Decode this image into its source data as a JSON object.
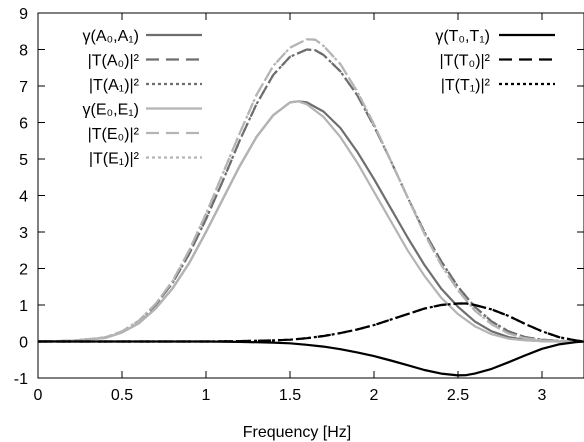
{
  "chart_data": {
    "type": "line",
    "title": "",
    "xlabel": "Frequency [Hz]",
    "ylabel": "",
    "xlim": [
      0,
      3.25
    ],
    "ylim": [
      -1,
      9
    ],
    "grid": false,
    "legend_placement": "top-left and top-right",
    "x_ticks": [
      "0",
      "0.5",
      "1",
      "1.5",
      "2",
      "2.5",
      "3"
    ],
    "x_tick_values": [
      0,
      0.5,
      1,
      1.5,
      2,
      2.5,
      3
    ],
    "y_ticks": [
      "-1",
      "0",
      "1",
      "2",
      "3",
      "4",
      "5",
      "6",
      "7",
      "8",
      "9"
    ],
    "y_tick_values": [
      -1,
      0,
      1,
      2,
      3,
      4,
      5,
      6,
      7,
      8,
      9
    ],
    "legend_left": [
      {
        "label": "γ(A₀,A₁)",
        "series": 0
      },
      {
        "label": "|T(A₀)|²",
        "series": 1
      },
      {
        "label": "|T(A₁)|²",
        "series": 2
      },
      {
        "label": "γ(E₀,E₁)",
        "series": 3
      },
      {
        "label": "|T(E₀)|²",
        "series": 4
      },
      {
        "label": "|T(E₁)|²",
        "series": 5
      }
    ],
    "legend_right": [
      {
        "label": "γ(T₀,T₁)",
        "series": 6
      },
      {
        "label": "|T(T₀)|²",
        "series": 7
      },
      {
        "label": "|T(T₁)|²",
        "series": 8
      }
    ],
    "series": [
      {
        "name": "γ(A₀,A₁)",
        "color": "#6e6e6e",
        "dash": "solid",
        "x": [
          0,
          0.2,
          0.4,
          0.5,
          0.6,
          0.7,
          0.8,
          0.9,
          1.0,
          1.1,
          1.2,
          1.3,
          1.4,
          1.5,
          1.55,
          1.6,
          1.7,
          1.8,
          1.9,
          2.0,
          2.1,
          2.2,
          2.3,
          2.4,
          2.5,
          2.6,
          2.7,
          2.8,
          2.9,
          3.0,
          3.1,
          3.2,
          3.25
        ],
        "y": [
          0,
          0.02,
          0.1,
          0.25,
          0.5,
          0.9,
          1.45,
          2.15,
          3.0,
          3.9,
          4.8,
          5.6,
          6.2,
          6.55,
          6.58,
          6.55,
          6.3,
          5.85,
          5.2,
          4.45,
          3.65,
          2.85,
          2.1,
          1.45,
          0.95,
          0.55,
          0.28,
          0.12,
          0.04,
          0.01,
          0,
          0,
          0
        ]
      },
      {
        "name": "|T(A₀)|²",
        "color": "#6e6e6e",
        "dash": "long",
        "x": [
          0,
          0.2,
          0.4,
          0.5,
          0.6,
          0.7,
          0.8,
          0.9,
          1.0,
          1.1,
          1.2,
          1.3,
          1.4,
          1.5,
          1.6,
          1.65,
          1.7,
          1.8,
          1.9,
          2.0,
          2.1,
          2.2,
          2.3,
          2.4,
          2.5,
          2.6,
          2.7,
          2.8,
          2.9,
          3.0,
          3.1,
          3.2,
          3.25
        ],
        "y": [
          0,
          0.02,
          0.11,
          0.27,
          0.55,
          1.0,
          1.6,
          2.4,
          3.35,
          4.4,
          5.5,
          6.5,
          7.3,
          7.8,
          8.0,
          7.98,
          7.85,
          7.4,
          6.75,
          5.9,
          4.95,
          3.95,
          3.0,
          2.2,
          1.5,
          0.95,
          0.55,
          0.28,
          0.12,
          0.05,
          0.02,
          0,
          0
        ]
      },
      {
        "name": "|T(A₁)|²",
        "color": "#6e6e6e",
        "dash": "dotted",
        "x": [
          0,
          0.2,
          0.4,
          0.5,
          0.6,
          0.7,
          0.8,
          0.9,
          1.0,
          1.1,
          1.2,
          1.3,
          1.4,
          1.5,
          1.6,
          1.65,
          1.7,
          1.8,
          1.9,
          2.0,
          2.1,
          2.2,
          2.3,
          2.4,
          2.5,
          2.6,
          2.7,
          2.8,
          2.9,
          3.0,
          3.1,
          3.2,
          3.25
        ],
        "y": [
          0,
          0.02,
          0.11,
          0.27,
          0.55,
          1.0,
          1.6,
          2.4,
          3.35,
          4.4,
          5.5,
          6.5,
          7.3,
          7.8,
          8.0,
          7.98,
          7.85,
          7.4,
          6.75,
          5.9,
          4.95,
          3.95,
          3.0,
          2.2,
          1.5,
          0.95,
          0.55,
          0.28,
          0.12,
          0.05,
          0.02,
          0,
          0
        ]
      },
      {
        "name": "γ(E₀,E₁)",
        "color": "#b4b4b4",
        "dash": "solid",
        "x": [
          0,
          0.2,
          0.4,
          0.5,
          0.6,
          0.7,
          0.8,
          0.9,
          1.0,
          1.1,
          1.2,
          1.3,
          1.4,
          1.5,
          1.55,
          1.6,
          1.7,
          1.8,
          1.9,
          2.0,
          2.1,
          2.2,
          2.3,
          2.4,
          2.5,
          2.6,
          2.7,
          2.8,
          2.9,
          3.0,
          3.1,
          3.2,
          3.25
        ],
        "y": [
          0,
          0.02,
          0.1,
          0.25,
          0.5,
          0.9,
          1.45,
          2.15,
          3.0,
          3.9,
          4.8,
          5.6,
          6.2,
          6.55,
          6.58,
          6.5,
          6.15,
          5.6,
          4.9,
          4.1,
          3.3,
          2.5,
          1.8,
          1.2,
          0.75,
          0.42,
          0.2,
          0.08,
          0.03,
          0.01,
          0,
          0,
          0
        ]
      },
      {
        "name": "|T(E₀)|²",
        "color": "#b4b4b4",
        "dash": "long",
        "x": [
          0,
          0.2,
          0.4,
          0.5,
          0.6,
          0.7,
          0.8,
          0.9,
          1.0,
          1.1,
          1.2,
          1.3,
          1.4,
          1.5,
          1.6,
          1.65,
          1.7,
          1.8,
          1.9,
          2.0,
          2.1,
          2.2,
          2.3,
          2.4,
          2.5,
          2.6,
          2.7,
          2.8,
          2.9,
          3.0,
          3.1,
          3.2,
          3.25
        ],
        "y": [
          0,
          0.02,
          0.11,
          0.28,
          0.57,
          1.03,
          1.65,
          2.5,
          3.5,
          4.6,
          5.7,
          6.75,
          7.55,
          8.05,
          8.28,
          8.27,
          8.1,
          7.6,
          6.85,
          5.95,
          4.95,
          3.95,
          2.95,
          2.1,
          1.4,
          0.85,
          0.47,
          0.22,
          0.09,
          0.03,
          0.01,
          0,
          0
        ]
      },
      {
        "name": "|T(E₁)|²",
        "color": "#b4b4b4",
        "dash": "dotted",
        "x": [
          0,
          0.2,
          0.4,
          0.5,
          0.6,
          0.7,
          0.8,
          0.9,
          1.0,
          1.1,
          1.2,
          1.3,
          1.4,
          1.5,
          1.6,
          1.65,
          1.7,
          1.8,
          1.9,
          2.0,
          2.1,
          2.2,
          2.3,
          2.4,
          2.5,
          2.6,
          2.7,
          2.8,
          2.9,
          3.0,
          3.1,
          3.2,
          3.25
        ],
        "y": [
          0,
          0.02,
          0.11,
          0.28,
          0.57,
          1.03,
          1.65,
          2.5,
          3.5,
          4.6,
          5.7,
          6.75,
          7.55,
          8.05,
          8.28,
          8.27,
          8.1,
          7.6,
          6.85,
          5.95,
          4.95,
          3.95,
          2.95,
          2.1,
          1.4,
          0.85,
          0.47,
          0.22,
          0.09,
          0.03,
          0.01,
          0,
          0
        ]
      },
      {
        "name": "γ(T₀,T₁)",
        "color": "#000000",
        "dash": "solid",
        "x": [
          0,
          0.5,
          1.0,
          1.2,
          1.4,
          1.5,
          1.6,
          1.7,
          1.8,
          1.9,
          2.0,
          2.1,
          2.2,
          2.3,
          2.4,
          2.5,
          2.55,
          2.6,
          2.7,
          2.8,
          2.9,
          3.0,
          3.1,
          3.2,
          3.25
        ],
        "y": [
          0,
          0,
          0,
          -0.01,
          -0.03,
          -0.05,
          -0.09,
          -0.14,
          -0.21,
          -0.3,
          -0.4,
          -0.52,
          -0.65,
          -0.78,
          -0.88,
          -0.93,
          -0.92,
          -0.88,
          -0.75,
          -0.57,
          -0.38,
          -0.2,
          -0.08,
          -0.02,
          0
        ]
      },
      {
        "name": "|T(T₀)|²",
        "color": "#000000",
        "dash": "long",
        "x": [
          0,
          0.5,
          1.0,
          1.2,
          1.4,
          1.5,
          1.6,
          1.7,
          1.8,
          1.9,
          2.0,
          2.1,
          2.2,
          2.3,
          2.4,
          2.5,
          2.55,
          2.6,
          2.7,
          2.8,
          2.9,
          3.0,
          3.1,
          3.2,
          3.25
        ],
        "y": [
          0,
          0,
          0,
          0.01,
          0.03,
          0.05,
          0.09,
          0.15,
          0.23,
          0.33,
          0.45,
          0.6,
          0.75,
          0.9,
          1.0,
          1.04,
          1.04,
          1.0,
          0.88,
          0.7,
          0.48,
          0.28,
          0.12,
          0.03,
          0
        ]
      },
      {
        "name": "|T(T₁)|²",
        "color": "#000000",
        "dash": "dotted",
        "x": [
          0,
          0.5,
          1.0,
          1.2,
          1.4,
          1.5,
          1.6,
          1.7,
          1.8,
          1.9,
          2.0,
          2.1,
          2.2,
          2.3,
          2.4,
          2.5,
          2.55,
          2.6,
          2.7,
          2.8,
          2.9,
          3.0,
          3.1,
          3.2,
          3.25
        ],
        "y": [
          0,
          0,
          0,
          0.01,
          0.03,
          0.05,
          0.09,
          0.15,
          0.23,
          0.33,
          0.45,
          0.6,
          0.75,
          0.9,
          1.0,
          1.04,
          1.04,
          1.0,
          0.88,
          0.7,
          0.48,
          0.28,
          0.12,
          0.03,
          0
        ]
      }
    ]
  }
}
